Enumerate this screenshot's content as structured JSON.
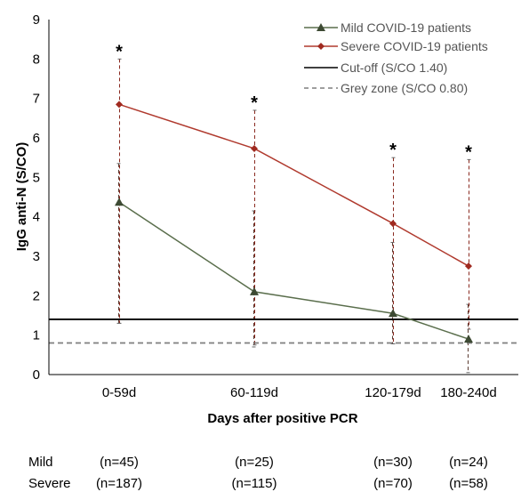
{
  "chart_data": {
    "type": "line",
    "title": "",
    "xlabel": "Days after positive PCR",
    "ylabel": "IgG anti-N (S/CO)",
    "ylim": [
      0,
      9
    ],
    "yticks": [
      "0",
      "1",
      "2",
      "3",
      "4",
      "5",
      "6",
      "7",
      "8",
      "9"
    ],
    "categories": [
      "0-59d",
      "60-119d",
      "120-179d",
      "180-240d"
    ],
    "grid": false,
    "legend_position": "top-right",
    "series": [
      {
        "name": "Mild COVID-19 patients",
        "marker": "triangle",
        "color": "#5a6e4c",
        "values": [
          4.37,
          2.1,
          1.55,
          0.9
        ],
        "error_low": [
          1.3,
          0.7,
          0.78,
          0.05
        ],
        "error_high": [
          5.35,
          4.15,
          3.35,
          1.78
        ]
      },
      {
        "name": "Severe COVID-19 patients",
        "marker": "diamond",
        "color": "#b03a2e",
        "values": [
          6.85,
          5.73,
          3.83,
          2.75
        ],
        "error_low": [
          1.3,
          0.75,
          0.78,
          1.15
        ],
        "error_high": [
          8.0,
          6.7,
          5.5,
          5.45
        ]
      }
    ],
    "reference_lines": [
      {
        "name": "Cut-off (S/CO 1.40)",
        "value": 1.4,
        "style": "solid",
        "color": "#000000"
      },
      {
        "name": "Grey zone (S/CO 0.80)",
        "value": 0.8,
        "style": "dashed",
        "color": "#7f7f7f"
      }
    ],
    "annotations": [
      {
        "category": "0-59d",
        "text": "*"
      },
      {
        "category": "60-119d",
        "text": "*"
      },
      {
        "category": "120-179d",
        "text": "*"
      },
      {
        "category": "180-240d",
        "text": "*"
      }
    ],
    "sample_sizes": [
      {
        "group": "Mild",
        "counts": [
          "(n=45)",
          "(n=25)",
          "(n=30)",
          "(n=24)"
        ]
      },
      {
        "group": "Severe",
        "counts": [
          "(n=187)",
          "(n=115)",
          "(n=70)",
          "(n=58)"
        ]
      }
    ]
  }
}
